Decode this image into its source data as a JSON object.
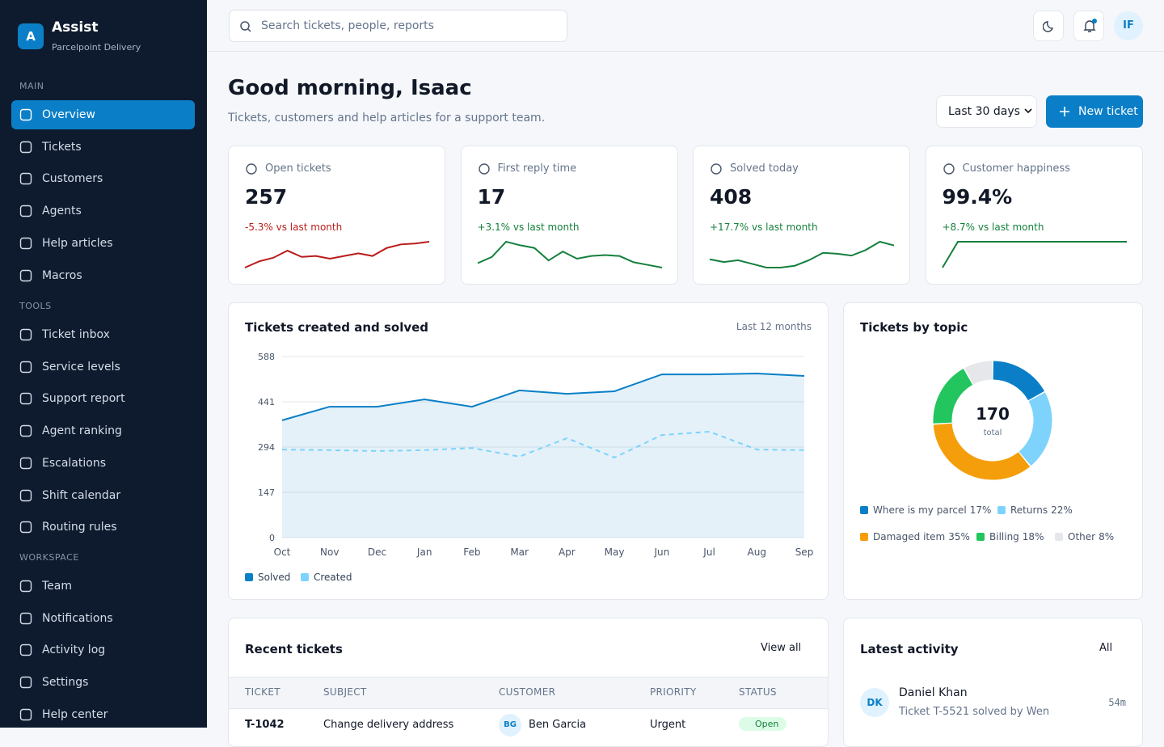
{
  "sidebar": {
    "logo": "A",
    "app": "Assist",
    "org": "Parcelpoint Delivery",
    "sections": [
      {
        "title": "MAIN",
        "items": [
          "Overview",
          "Tickets",
          "Customers",
          "Agents",
          "Help articles",
          "Macros"
        ]
      },
      {
        "title": "TOOLS",
        "items": [
          "Ticket inbox",
          "Service levels",
          "Support report",
          "Agent ranking",
          "Escalations",
          "Shift calendar",
          "Routing rules"
        ]
      },
      {
        "title": "WORKSPACE",
        "items": [
          "Team",
          "Notifications",
          "Activity log",
          "Settings",
          "Help center"
        ]
      }
    ]
  },
  "topbar": {
    "search": "Search tickets, people, reports",
    "avatar": "IF"
  },
  "header": {
    "title": "Good morning, Isaac",
    "subtitle": "Tickets, customers and help articles for a support team.",
    "range": "Last 30 days",
    "button": "New ticket"
  },
  "kpis": [
    {
      "label": "Open tickets",
      "value": "257",
      "delta": "-5.3% vs last month",
      "color": "#b91c1c",
      "spark": [
        21,
        28,
        32,
        40,
        33,
        34,
        31,
        34,
        37,
        34,
        43,
        47,
        48,
        50
      ]
    },
    {
      "label": "First reply time",
      "value": "17",
      "delta": "+3.1% vs last month",
      "color": "#15803d",
      "spark": [
        26,
        33,
        50,
        46,
        43,
        29,
        39,
        31,
        34,
        35,
        34,
        27,
        24,
        21
      ]
    },
    {
      "label": "Solved today",
      "value": "408",
      "delta": "+17.7% vs last month",
      "color": "#15803d",
      "spark": [
        31,
        28,
        30,
        26,
        22,
        22,
        24,
        30,
        38,
        37,
        35,
        41,
        50,
        46
      ]
    },
    {
      "label": "Customer happiness",
      "value": "99.4%",
      "delta": "+8.7% vs last month",
      "color": "#15803d",
      "spark": [
        21,
        50,
        50,
        50,
        50,
        50,
        50,
        50,
        50,
        50,
        50,
        50,
        50
      ]
    }
  ],
  "chart_data": [
    {
      "type": "line",
      "title": "Tickets created and solved",
      "subtitle": "Last 12 months",
      "categories": [
        "Oct",
        "Nov",
        "Dec",
        "Jan",
        "Feb",
        "Mar",
        "Apr",
        "May",
        "Jun",
        "Jul",
        "Aug",
        "Sep"
      ],
      "series": [
        {
          "name": "Solved",
          "color": "#0a7fc7",
          "values": [
            381,
            425,
            425,
            449,
            425,
            478,
            467,
            475,
            530,
            530,
            533,
            525
          ]
        },
        {
          "name": "Created",
          "color": "#7dd3fc",
          "values": [
            286,
            284,
            281,
            284,
            291,
            263,
            323,
            260,
            333,
            344,
            286,
            284
          ]
        }
      ],
      "ylim": [
        0,
        588
      ],
      "yticks": [
        0,
        147,
        294,
        441,
        588
      ],
      "grid": true
    },
    {
      "type": "pie",
      "title": "Tickets by topic",
      "total": "170",
      "total_label": "total",
      "categories": [
        "Where is my parcel",
        "Returns",
        "Damaged item",
        "Billing",
        "Other"
      ],
      "values": [
        17,
        22,
        35,
        18,
        8
      ],
      "value_labels": [
        "17%",
        "22%",
        "35%",
        "18%",
        "8%"
      ],
      "colors": [
        "#0a7fc7",
        "#7dd3fc",
        "#f59e0b",
        "#22c55e",
        "#e5e7eb"
      ]
    }
  ],
  "recent": {
    "title": "Recent tickets",
    "link": "View all",
    "columns": [
      "TICKET",
      "SUBJECT",
      "CUSTOMER",
      "PRIORITY",
      "STATUS"
    ],
    "rows": [
      [
        "T-1042",
        "Change delivery address",
        "BG",
        "Ben Garcia",
        "Urgent",
        "Open"
      ]
    ]
  },
  "activity": {
    "title": "Latest activity",
    "link": "All",
    "items": [
      {
        "initials": "DK",
        "name": "Daniel Khan",
        "text": "Ticket T-5521 solved by Wen",
        "time": "54m"
      }
    ]
  }
}
